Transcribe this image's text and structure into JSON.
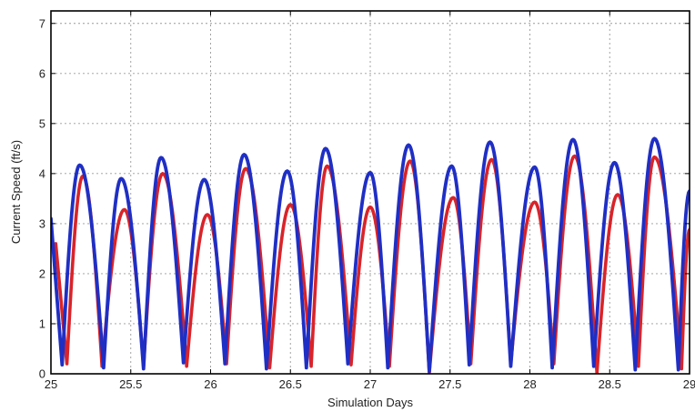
{
  "chart_data": {
    "type": "line",
    "title": "",
    "xlabel": "Simulation Days",
    "ylabel": "Current Speed (ft/s)",
    "xlim": [
      25,
      29
    ],
    "ylim": [
      0,
      7.25
    ],
    "xticks": [
      25,
      25.5,
      26,
      26.5,
      27,
      27.5,
      28,
      28.5,
      29
    ],
    "xtick_labels": [
      "25",
      "25.5",
      "26",
      "26.5",
      "27",
      "27.5",
      "28",
      "28.5",
      "29"
    ],
    "yticks": [
      0,
      1,
      2,
      3,
      4,
      5,
      6,
      7
    ],
    "ytick_labels": [
      "0",
      "1",
      "2",
      "3",
      "4",
      "5",
      "6",
      "7"
    ],
    "grid": true,
    "legend": "none",
    "series": [
      {
        "color": "#d8242a",
        "valleys": [
          [
            25.03,
            2.6
          ],
          [
            25.1,
            0.2
          ],
          [
            25.32,
            0.15
          ],
          [
            25.58,
            0.15
          ],
          [
            25.85,
            0.15
          ],
          [
            26.1,
            0.2
          ],
          [
            26.37,
            0.12
          ],
          [
            26.63,
            0.15
          ],
          [
            26.88,
            0.18
          ],
          [
            27.12,
            0.15
          ],
          [
            27.37,
            0.02
          ],
          [
            27.63,
            0.2
          ],
          [
            27.88,
            0.2
          ],
          [
            28.15,
            0.2
          ],
          [
            28.42,
            0.02
          ],
          [
            28.68,
            0.15
          ],
          [
            28.95,
            0.1
          ],
          [
            29,
            2.88
          ]
        ],
        "peaks": [
          [
            25.2,
            3.95
          ],
          [
            25.46,
            3.28
          ],
          [
            25.7,
            4.0
          ],
          [
            25.98,
            3.18
          ],
          [
            26.22,
            4.1
          ],
          [
            26.5,
            3.38
          ],
          [
            26.73,
            4.15
          ],
          [
            27.0,
            3.33
          ],
          [
            27.25,
            4.25
          ],
          [
            27.52,
            3.52
          ],
          [
            27.76,
            4.28
          ],
          [
            28.03,
            3.43
          ],
          [
            28.28,
            4.35
          ],
          [
            28.55,
            3.58
          ],
          [
            28.78,
            4.33
          ]
        ]
      },
      {
        "color": "#1f2fc4",
        "valleys": [
          [
            25.0,
            3.1
          ],
          [
            25.07,
            0.18
          ],
          [
            25.33,
            0.12
          ],
          [
            25.58,
            0.1
          ],
          [
            25.83,
            0.22
          ],
          [
            26.09,
            0.2
          ],
          [
            26.35,
            0.1
          ],
          [
            26.6,
            0.12
          ],
          [
            26.86,
            0.2
          ],
          [
            27.11,
            0.12
          ],
          [
            27.37,
            0.05
          ],
          [
            27.62,
            0.18
          ],
          [
            27.88,
            0.15
          ],
          [
            28.14,
            0.12
          ],
          [
            28.4,
            0.15
          ],
          [
            28.66,
            0.08
          ],
          [
            28.93,
            0.08
          ],
          [
            29,
            3.65
          ]
        ],
        "peaks": [
          [
            25.18,
            4.17
          ],
          [
            25.44,
            3.9
          ],
          [
            25.69,
            4.32
          ],
          [
            25.96,
            3.88
          ],
          [
            26.21,
            4.38
          ],
          [
            26.48,
            4.05
          ],
          [
            26.72,
            4.5
          ],
          [
            27.0,
            4.02
          ],
          [
            27.24,
            4.57
          ],
          [
            27.51,
            4.15
          ],
          [
            27.75,
            4.63
          ],
          [
            28.03,
            4.13
          ],
          [
            28.27,
            4.68
          ],
          [
            28.53,
            4.22
          ],
          [
            28.78,
            4.7
          ]
        ]
      }
    ]
  }
}
